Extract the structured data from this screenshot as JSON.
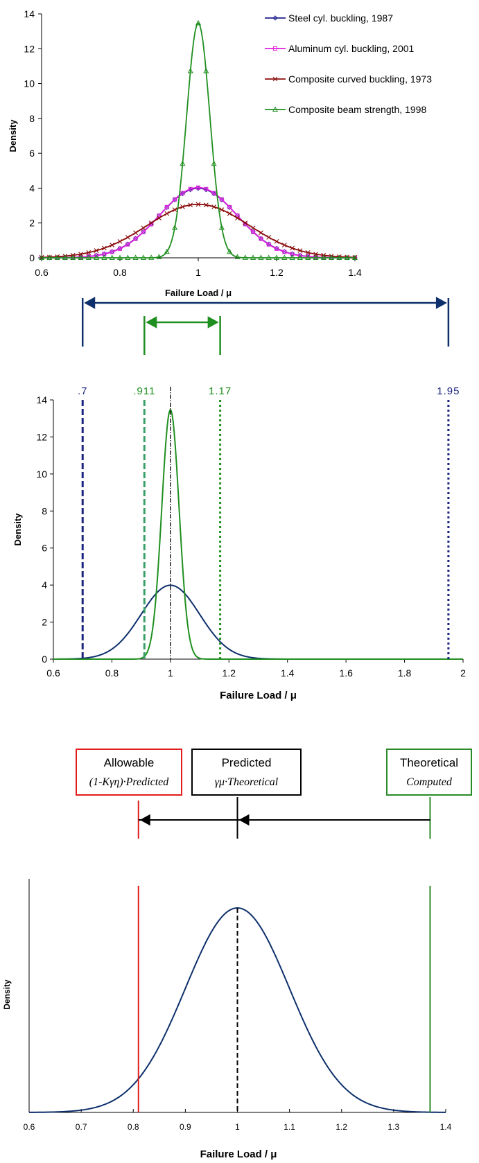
{
  "colors": {
    "steel": "#1f1f8f",
    "aluminum": "#e020e0",
    "composite_curved": "#8b0d0d",
    "composite_beam": "#1f8f1f",
    "navy": "#0d2f6b",
    "red": "#e21b1b",
    "green": "#2a8a2a"
  },
  "chart_data": [
    {
      "type": "line",
      "xlabel": "Failure Load / μ",
      "ylabel": "Density",
      "xlim": [
        0.6,
        1.4
      ],
      "ylim": [
        0,
        14
      ],
      "xticks": [
        "0.6",
        "0.8",
        "1",
        "1.2",
        "1.4"
      ],
      "yticks": [
        "0",
        "2",
        "4",
        "6",
        "8",
        "10",
        "12",
        "14"
      ],
      "legend_position": "top-right",
      "series": [
        {
          "name": "Steel cyl. buckling, 1987",
          "marker": "diamond",
          "mean": 1.0,
          "sd": 0.1,
          "peak": 3.99
        },
        {
          "name": "Aluminum cyl. buckling, 2001",
          "marker": "square",
          "mean": 1.0,
          "sd": 0.099,
          "peak": 4.03
        },
        {
          "name": "Composite curved buckling, 1973",
          "marker": "x",
          "mean": 1.0,
          "sd": 0.13,
          "peak": 3.07
        },
        {
          "name": "Composite beam strength, 1998",
          "marker": "triangle",
          "mean": 1.0,
          "sd": 0.0296,
          "peak": 13.47
        }
      ]
    },
    {
      "type": "line",
      "xlabel": "Failure Load / μ",
      "ylabel": "Density",
      "xlim": [
        0.6,
        2.0
      ],
      "ylim": [
        0,
        14
      ],
      "xticks": [
        "0.6",
        "0.8",
        "1",
        "1.2",
        "1.4",
        "1.6",
        "1.8",
        "2"
      ],
      "yticks": [
        "0",
        "2",
        "4",
        "6",
        "8",
        "10",
        "12",
        "14"
      ],
      "bounds": [
        {
          "label": ".7",
          "value": 0.7,
          "style": "dashed",
          "color": "navy"
        },
        {
          "label": ".911",
          "value": 0.911,
          "style": "dashed",
          "color": "green"
        },
        {
          "label": "1.17",
          "value": 1.17,
          "style": "dotted",
          "color": "green"
        },
        {
          "label": "1.95",
          "value": 1.95,
          "style": "dotted",
          "color": "navy"
        }
      ],
      "mean_line": 1.0,
      "series": [
        {
          "mean": 1.0,
          "sd": 0.1,
          "peak": 3.99,
          "color": "navy"
        },
        {
          "mean": 1.0,
          "sd": 0.0296,
          "peak": 13.47,
          "color": "green"
        }
      ]
    },
    {
      "type": "line",
      "xlabel": "Failure Load / μ",
      "ylabel": "Density",
      "xlim": [
        0.6,
        1.4
      ],
      "xticks": [
        "0.6",
        "0.7",
        "0.8",
        "0.9",
        "1",
        "1.1",
        "1.2",
        "1.3",
        "1.4"
      ],
      "series": [
        {
          "mean": 1.0,
          "sd": 0.1,
          "peak": 1.0,
          "color": "navy"
        }
      ],
      "markers": {
        "allowable": 0.81,
        "predicted": 1.0,
        "theoretical": 1.37
      },
      "boxes": [
        {
          "title": "Allowable",
          "subtitle": "(1-Kγη)·Predicted",
          "color": "red"
        },
        {
          "title": "Predicted",
          "subtitle": "γμ·Theoretical",
          "color": "black"
        },
        {
          "title": "Theoretical",
          "subtitle": "Computed",
          "color": "green"
        }
      ]
    }
  ]
}
